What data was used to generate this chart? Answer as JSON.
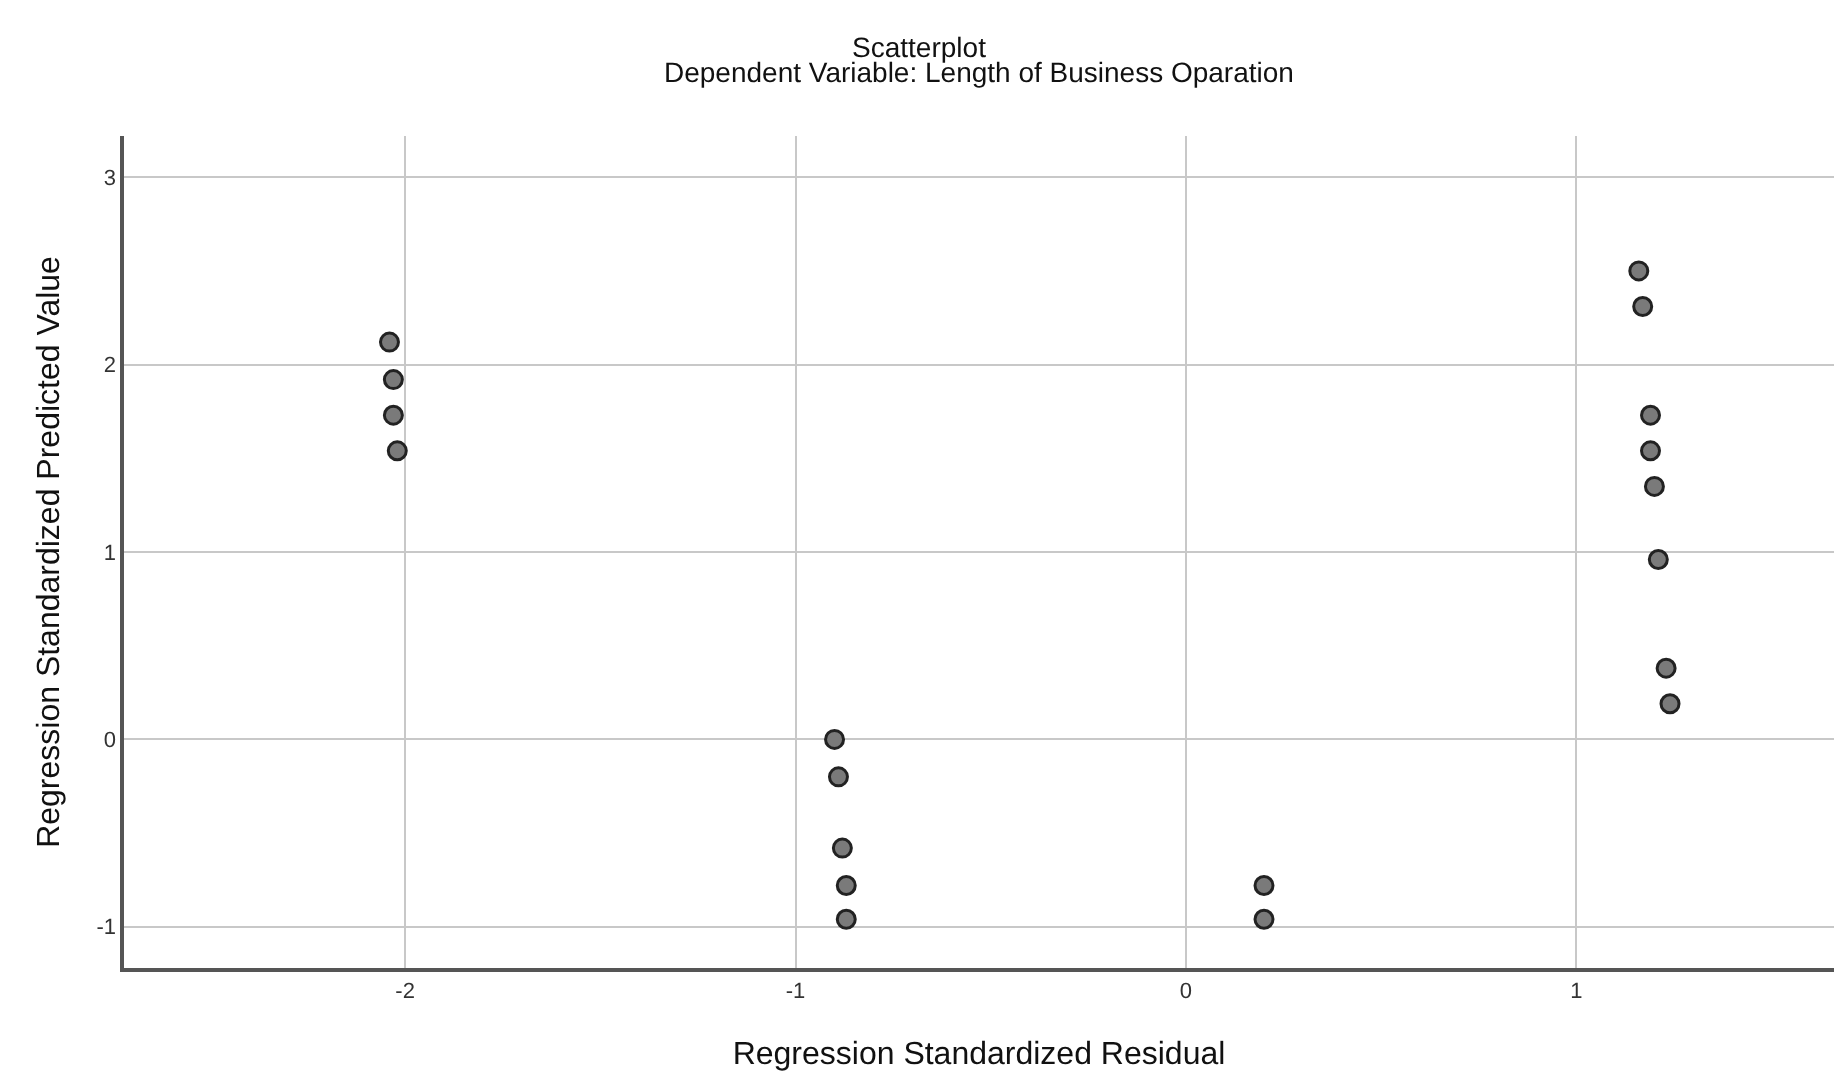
{
  "chart_data": {
    "type": "scatter",
    "title": "Scatterplot",
    "subtitle": "Dependent Variable: Length of Business Oparation",
    "xlabel": "Regression Standardized Residual",
    "ylabel": "Regression Standardized Predicted Value",
    "x": [
      -2.04,
      -2.03,
      -2.03,
      -2.02,
      -0.9,
      -0.89,
      -0.88,
      -0.87,
      -0.87,
      0.2,
      0.2,
      1.16,
      1.17,
      1.19,
      1.19,
      1.2,
      1.21,
      1.23,
      1.24
    ],
    "series": [
      {
        "color": "#7a7a7a",
        "values": [
          2.12,
          1.92,
          1.73,
          1.54,
          0,
          -0.2,
          -0.58,
          -0.78,
          -0.96,
          -0.78,
          -0.96,
          2.5,
          2.31,
          1.73,
          1.54,
          1.35,
          0.96,
          0.38,
          0.19
        ]
      }
    ],
    "xlim": [
      -2.72,
      1.66
    ],
    "ylim": [
      -1.22,
      3.22
    ],
    "xticks": [
      -2,
      -1,
      0,
      1
    ],
    "yticks": [
      -1,
      0,
      1,
      2,
      3
    ],
    "grid": true,
    "marker": "circle",
    "legend": false
  }
}
